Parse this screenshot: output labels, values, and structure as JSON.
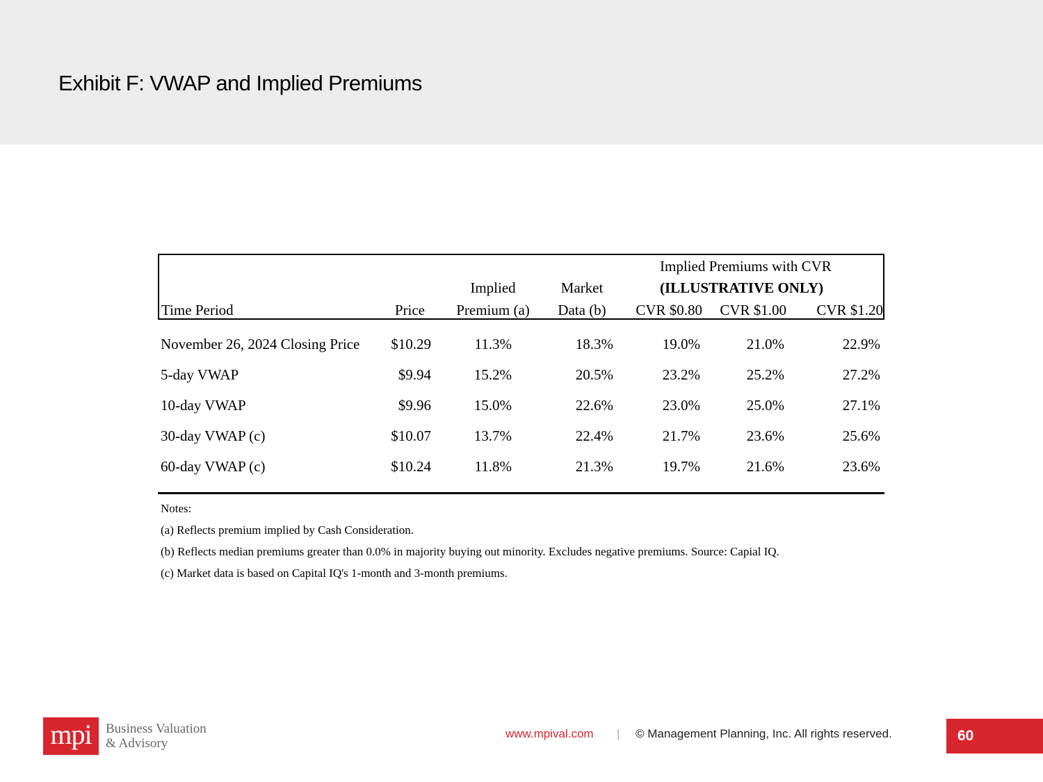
{
  "page": {
    "title": "Exhibit F: VWAP and Implied Premiums",
    "page_number": "60"
  },
  "table": {
    "group_header": {
      "line1": "Implied Premiums with CVR",
      "line2": "(ILLUSTRATIVE ONLY)"
    },
    "headers": {
      "time_period": "Time Period",
      "price": "Price",
      "implied_line1": "Implied",
      "implied_line2": "Premium (a)",
      "market_line1": "Market",
      "market_line2": "Data (b)",
      "cvr1": "CVR $0.80",
      "cvr2": "CVR $1.00",
      "cvr3": "CVR $1.20"
    },
    "rows": [
      {
        "period": "November 26, 2024 Closing Price",
        "price": "$10.29",
        "implied": "11.3%",
        "market": "18.3%",
        "cvr1": "19.0%",
        "cvr2": "21.0%",
        "cvr3": "22.9%"
      },
      {
        "period": "5-day VWAP",
        "price": "$9.94",
        "implied": "15.2%",
        "market": "20.5%",
        "cvr1": "23.2%",
        "cvr2": "25.2%",
        "cvr3": "27.2%"
      },
      {
        "period": "10-day VWAP",
        "price": "$9.96",
        "implied": "15.0%",
        "market": "22.6%",
        "cvr1": "23.0%",
        "cvr2": "25.0%",
        "cvr3": "27.1%"
      },
      {
        "period": "30-day VWAP (c)",
        "price": "$10.07",
        "implied": "13.7%",
        "market": "22.4%",
        "cvr1": "21.7%",
        "cvr2": "23.6%",
        "cvr3": "25.6%"
      },
      {
        "period": "60-day VWAP (c)",
        "price": "$10.24",
        "implied": "11.8%",
        "market": "21.3%",
        "cvr1": "19.7%",
        "cvr2": "21.6%",
        "cvr3": "23.6%"
      }
    ]
  },
  "notes": [
    "Notes:",
    "(a) Reflects premium implied by Cash Consideration.",
    "(b) Reflects median premiums greater than 0.0% in majority buying out minority. Excludes negative premiums. Source: Capial IQ.",
    "(c) Market data is based on Capital IQ's 1-month and 3-month premiums."
  ],
  "footer": {
    "logo_text": "mpi",
    "logo_tagline_1": "Business Valuation",
    "logo_tagline_2": "& Advisory",
    "url": "www.mpival.com",
    "separator": "|",
    "copyright": "© Management Planning, Inc.  All rights reserved."
  },
  "colors": {
    "brand_red": "#d9262e",
    "header_band": "#ececec"
  }
}
